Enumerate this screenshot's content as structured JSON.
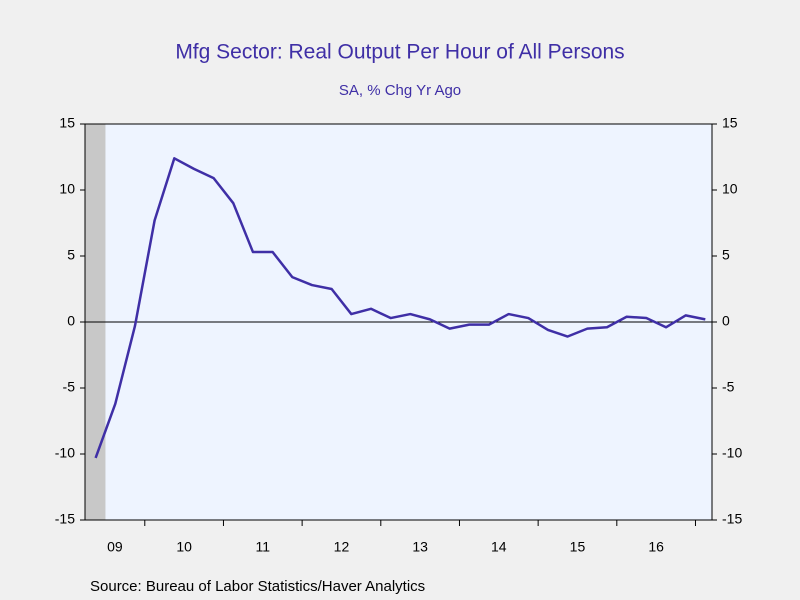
{
  "chart_data": {
    "type": "line",
    "title": "Mfg Sector: Real Output Per Hour of All Persons",
    "subtitle": "SA, % Chg Yr Ago",
    "source": "Source:  Bureau of Labor Statistics/Haver Analytics",
    "x": [
      2009.375,
      2009.625,
      2009.875,
      2010.125,
      2010.375,
      2010.625,
      2010.875,
      2011.125,
      2011.375,
      2011.625,
      2011.875,
      2012.125,
      2012.375,
      2012.625,
      2012.875,
      2013.125,
      2013.375,
      2013.625,
      2013.875,
      2014.125,
      2014.375,
      2014.625,
      2014.875,
      2015.125,
      2015.375,
      2015.625,
      2015.875,
      2016.125,
      2016.375,
      2016.625,
      2016.875,
      2017.125
    ],
    "series": [
      {
        "color": "#3f2fa6",
        "values": [
          -10.3,
          -6.2,
          -0.3,
          7.7,
          12.4,
          11.6,
          10.9,
          9.0,
          5.3,
          5.3,
          3.4,
          2.8,
          2.5,
          0.6,
          1.0,
          0.3,
          0.6,
          0.2,
          -0.5,
          -0.2,
          -0.2,
          0.6,
          0.3,
          -0.6,
          -1.1,
          -0.5,
          -0.4,
          0.4,
          0.3,
          -0.4,
          0.5,
          0.2
        ]
      }
    ],
    "xlim": [
      2009.24,
      2017.21
    ],
    "xticks": [
      2010,
      2011,
      2012,
      2013,
      2014,
      2015,
      2016,
      2017
    ],
    "xlabels": [
      {
        "value": 2009,
        "label": "09"
      },
      {
        "value": 2010,
        "label": "10"
      },
      {
        "value": 2011,
        "label": "11"
      },
      {
        "value": 2012,
        "label": "12"
      },
      {
        "value": 2013,
        "label": "13"
      },
      {
        "value": 2014,
        "label": "14"
      },
      {
        "value": 2015,
        "label": "15"
      },
      {
        "value": 2016,
        "label": "16"
      }
    ],
    "recession": [
      2009.0,
      2009.5
    ],
    "ylim": [
      -15,
      15
    ],
    "yticks": [
      -15,
      -10,
      -5,
      0,
      5,
      10,
      15
    ]
  }
}
